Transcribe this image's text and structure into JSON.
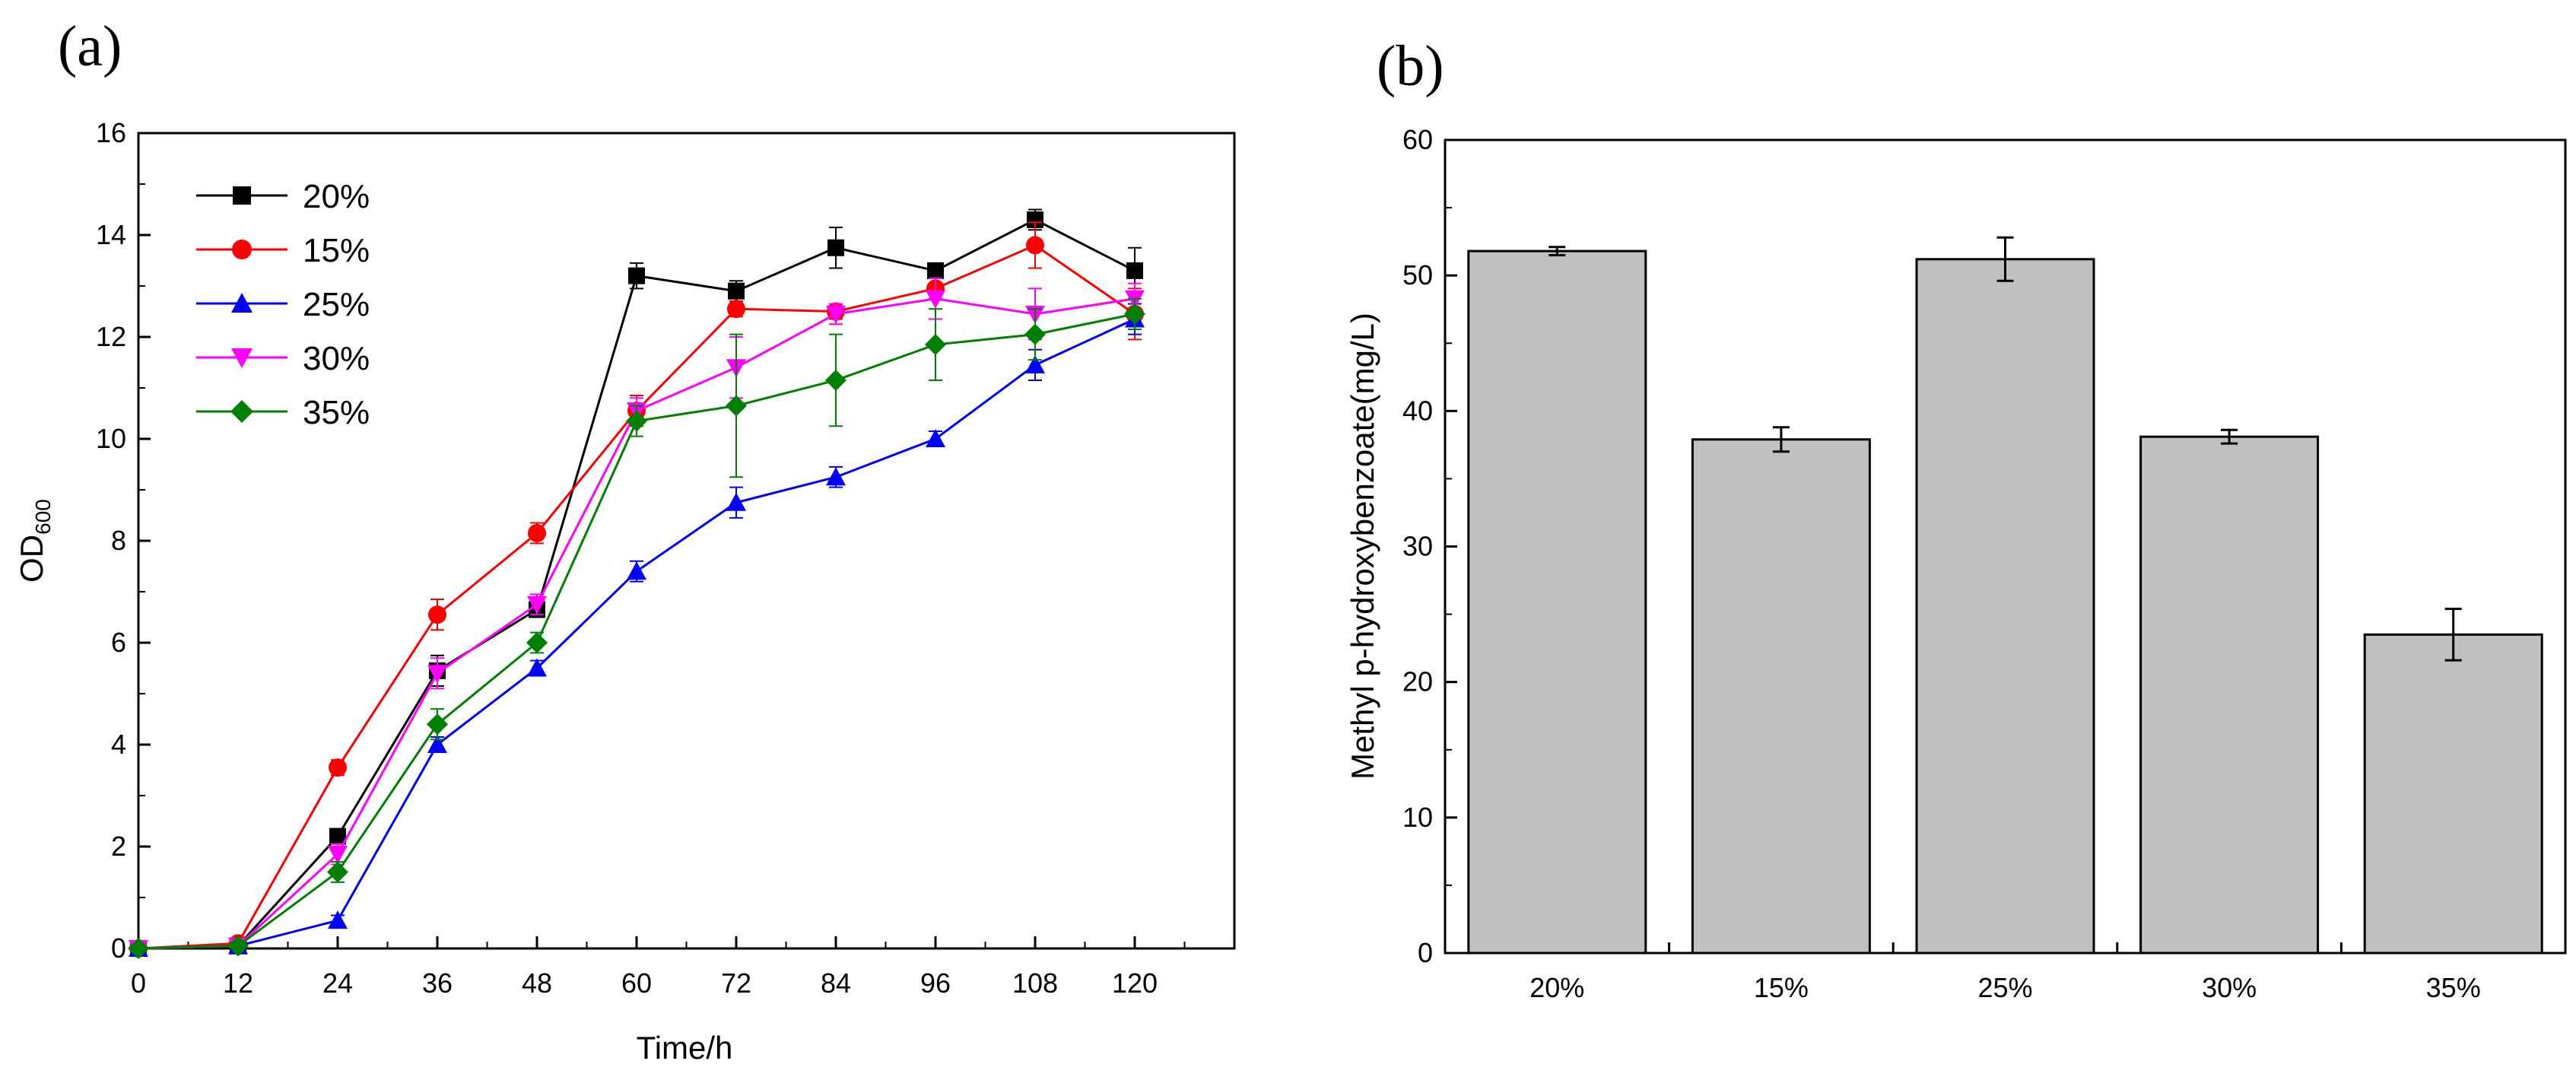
{
  "chart_data": [
    {
      "type": "line",
      "panel_label": "(a)",
      "title": "",
      "xlabel": "Time/h",
      "ylabel": {
        "main": "OD",
        "subscript": "600"
      },
      "xlim": [
        0,
        132
      ],
      "ylim": [
        0,
        16
      ],
      "x": [
        0,
        12,
        24,
        36,
        48,
        60,
        72,
        84,
        96,
        108,
        120
      ],
      "xticks": [
        "0",
        "12",
        "24",
        "36",
        "48",
        "60",
        "72",
        "84",
        "96",
        "108",
        "120"
      ],
      "yticks": [
        "0",
        "2",
        "4",
        "6",
        "8",
        "10",
        "12",
        "14",
        "16"
      ],
      "grid": false,
      "legend_position": "top-left",
      "series": [
        {
          "name": "20%",
          "color": "#000000",
          "marker": "square",
          "values": [
            0,
            0.05,
            2.2,
            5.45,
            6.65,
            13.2,
            12.9,
            13.75,
            13.3,
            14.3,
            13.3
          ],
          "errors": [
            0,
            0.05,
            0.15,
            0.3,
            0.15,
            0.25,
            0.2,
            0.4,
            0.15,
            0.2,
            0.45
          ]
        },
        {
          "name": "15%",
          "color": "#ff0000",
          "marker": "circle",
          "values": [
            0,
            0.1,
            3.55,
            6.55,
            8.15,
            10.55,
            12.55,
            12.5,
            12.95,
            13.8,
            12.45
          ],
          "errors": [
            0,
            0.05,
            0.15,
            0.3,
            0.2,
            0.3,
            0.15,
            0.15,
            0.2,
            0.45,
            0.5
          ]
        },
        {
          "name": "25%",
          "color": "#0000ff",
          "marker": "triangle-up",
          "values": [
            0,
            0.05,
            0.55,
            4.0,
            5.5,
            7.4,
            8.75,
            9.25,
            10.0,
            11.45,
            12.35
          ],
          "errors": [
            0,
            0.05,
            0.1,
            0.15,
            0.15,
            0.2,
            0.3,
            0.2,
            0.15,
            0.3,
            0.3
          ]
        },
        {
          "name": "30%",
          "color": "#ff00ff",
          "marker": "triangle-down",
          "values": [
            0,
            0.05,
            1.85,
            5.4,
            6.75,
            10.55,
            11.4,
            12.45,
            12.75,
            12.45,
            12.75
          ],
          "errors": [
            0,
            0.05,
            0.2,
            0.3,
            0.2,
            0.25,
            0.6,
            0.2,
            0.4,
            0.5,
            0.3
          ]
        },
        {
          "name": "35%",
          "color": "#008000",
          "marker": "diamond",
          "values": [
            0,
            0.05,
            1.5,
            4.4,
            6.0,
            10.35,
            10.65,
            11.15,
            11.85,
            12.05,
            12.45
          ],
          "errors": [
            0,
            0.05,
            0.2,
            0.3,
            0.2,
            0.3,
            1.4,
            0.9,
            0.7,
            0.5,
            0.3
          ]
        }
      ]
    },
    {
      "type": "bar",
      "panel_label": "(b)",
      "title": "",
      "xlabel": "",
      "ylabel": "Methyl p-hydroxybenzoate(mg/L)",
      "categories": [
        "20%",
        "15%",
        "25%",
        "30%",
        "35%"
      ],
      "values": [
        51.8,
        37.9,
        51.2,
        38.1,
        23.5
      ],
      "errors": [
        0.3,
        0.9,
        1.6,
        0.5,
        1.9
      ],
      "ylim": [
        0,
        60
      ],
      "yticks": [
        "0",
        "10",
        "20",
        "30",
        "40",
        "50",
        "60"
      ],
      "bar_color": "#c0c0c0",
      "grid": false
    }
  ]
}
